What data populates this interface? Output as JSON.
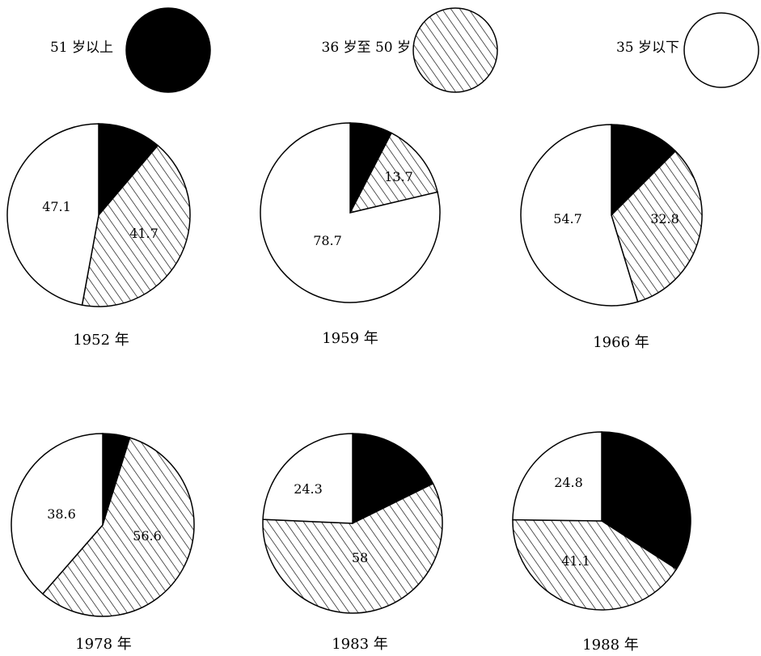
{
  "chart_data": {
    "type": "pie",
    "legend": [
      {
        "label": "51 岁以上",
        "fill": "black"
      },
      {
        "label": "36 岁至 50 岁",
        "fill": "hatch"
      },
      {
        "label": "35 岁以下",
        "fill": "white"
      }
    ],
    "charts": [
      {
        "title": "1952 年",
        "slices": [
          {
            "label": "11.2",
            "value": 11.2,
            "fill": "black"
          },
          {
            "label": "41.7",
            "value": 41.7,
            "fill": "hatch"
          },
          {
            "label": "47.1",
            "value": 47.1,
            "fill": "white"
          }
        ]
      },
      {
        "title": "1959 年",
        "slices": [
          {
            "label": "7.6",
            "value": 7.6,
            "fill": "black"
          },
          {
            "label": "13.7",
            "value": 13.7,
            "fill": "hatch"
          },
          {
            "label": "78.7",
            "value": 78.7,
            "fill": "white"
          }
        ]
      },
      {
        "title": "1966 年",
        "slices": [
          {
            "label": "12.5",
            "value": 12.5,
            "fill": "black"
          },
          {
            "label": "32.8",
            "value": 32.8,
            "fill": "hatch"
          },
          {
            "label": "54.7",
            "value": 54.7,
            "fill": "white"
          }
        ]
      },
      {
        "title": "1978 年",
        "slices": [
          {
            "label": "4.8",
            "value": 4.8,
            "fill": "black"
          },
          {
            "label": "56.6",
            "value": 56.6,
            "fill": "hatch"
          },
          {
            "label": "38.6",
            "value": 38.6,
            "fill": "white"
          }
        ]
      },
      {
        "title": "1983 年",
        "slices": [
          {
            "label": "17.7",
            "value": 17.7,
            "fill": "black"
          },
          {
            "label": "58",
            "value": 58,
            "fill": "hatch"
          },
          {
            "label": "24.3",
            "value": 24.3,
            "fill": "white"
          }
        ]
      },
      {
        "title": "1988 年",
        "slices": [
          {
            "label": "34.1",
            "value": 34.1,
            "fill": "black"
          },
          {
            "label": "41.1",
            "value": 41.1,
            "fill": "hatch"
          },
          {
            "label": "24.8",
            "value": 24.8,
            "fill": "white"
          }
        ]
      }
    ]
  }
}
